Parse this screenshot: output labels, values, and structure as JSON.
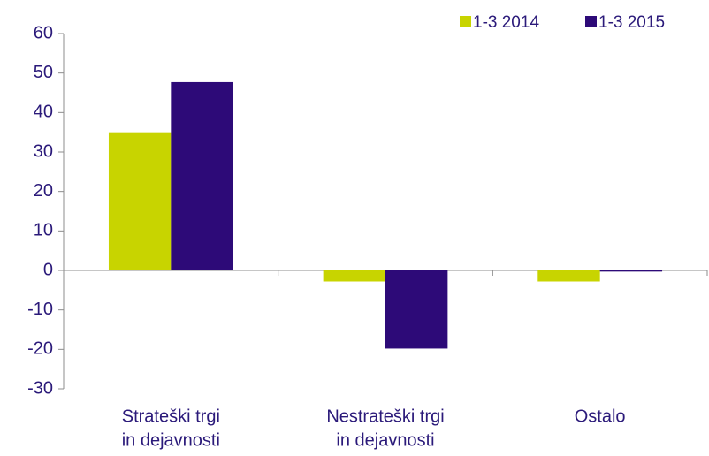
{
  "chart_data": {
    "type": "bar",
    "categories": [
      [
        "Strateški trgi",
        "in dejavnosti"
      ],
      [
        "Nestrateški trgi",
        "in dejavnosti"
      ],
      [
        "Ostalo"
      ]
    ],
    "series": [
      {
        "name": "1-3 2014",
        "color": "#c8d400",
        "values": [
          35,
          -2.8,
          -2.8
        ]
      },
      {
        "name": "1-3 2015",
        "color": "#2d0a78",
        "values": [
          47.7,
          -19.8,
          -0.3
        ]
      }
    ],
    "ylim": [
      -30,
      60
    ],
    "yticks": [
      -30,
      -20,
      -10,
      0,
      10,
      20,
      30,
      40,
      50,
      60
    ],
    "legend": "top-right"
  }
}
